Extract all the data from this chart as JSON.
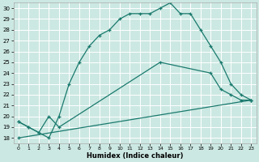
{
  "xlabel": "Humidex (Indice chaleur)",
  "bg_color": "#cce8e2",
  "grid_color": "#b8d8d2",
  "line_color": "#1a7a6e",
  "xlim": [
    -0.5,
    23.5
  ],
  "ylim": [
    17.5,
    30.5
  ],
  "yticks": [
    18,
    19,
    20,
    21,
    22,
    23,
    24,
    25,
    26,
    27,
    28,
    29,
    30
  ],
  "xticks": [
    0,
    1,
    2,
    3,
    4,
    5,
    6,
    7,
    8,
    9,
    10,
    11,
    12,
    13,
    14,
    15,
    16,
    17,
    18,
    19,
    20,
    21,
    22,
    23
  ],
  "series1_x": [
    0,
    1,
    2,
    3,
    4,
    5,
    6,
    7,
    8,
    9,
    10,
    11,
    12,
    13,
    14,
    15,
    16,
    17,
    18,
    19,
    20,
    21,
    22,
    23
  ],
  "series1_y": [
    19.5,
    19.0,
    18.5,
    18.0,
    20.0,
    23.0,
    25.0,
    26.5,
    27.5,
    28.0,
    29.0,
    29.5,
    29.5,
    29.5,
    30.0,
    30.5,
    29.5,
    29.5,
    28.0,
    26.5,
    25.0,
    23.0,
    22.0,
    21.5
  ],
  "series2_x": [
    0,
    1,
    2,
    3,
    4,
    14,
    19,
    20,
    21,
    22,
    23
  ],
  "series2_y": [
    19.5,
    19.0,
    18.5,
    20.0,
    19.0,
    25.0,
    24.0,
    22.5,
    22.0,
    21.5,
    21.5
  ],
  "series3_x": [
    0,
    23
  ],
  "series3_y": [
    18.0,
    21.5
  ]
}
